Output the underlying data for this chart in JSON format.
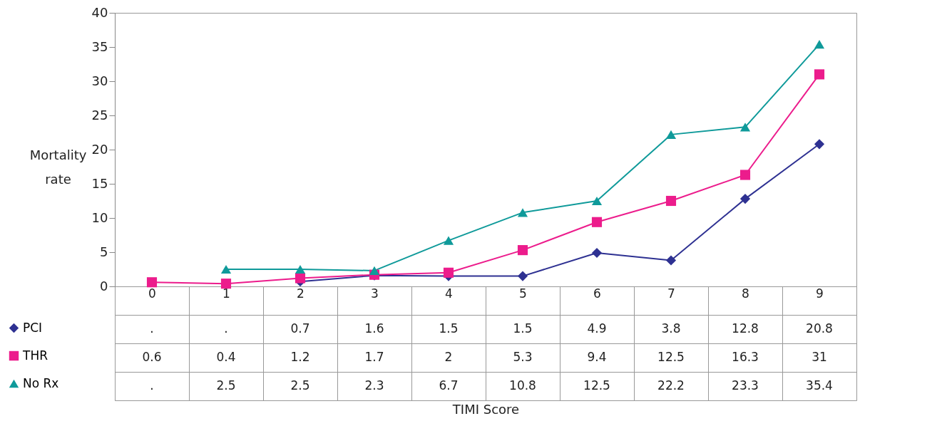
{
  "chart_data": {
    "type": "line",
    "annotations": [
      "TIMI Score"
    ],
    "ylabel": "Mortality rate",
    "categories": [
      "0",
      "1",
      "2",
      "3",
      "4",
      "5",
      "6",
      "7",
      "8",
      "9"
    ],
    "series": [
      {
        "name": "PCI",
        "color": "#2e3192",
        "marker": "diamond",
        "values": [
          null,
          null,
          0.7,
          1.6,
          1.5,
          1.5,
          4.9,
          3.8,
          12.8,
          20.8
        ],
        "value_labels": [
          ".",
          ".",
          "0.7",
          "1.6",
          "1.5",
          "1.5",
          "4.9",
          "3.8",
          "12.8",
          "20.8"
        ]
      },
      {
        "name": "THR",
        "color": "#ec1c8c",
        "marker": "square",
        "values": [
          0.6,
          0.4,
          1.2,
          1.7,
          2,
          5.3,
          9.4,
          12.5,
          16.3,
          31
        ],
        "value_labels": [
          "0.6",
          "0.4",
          "1.2",
          "1.7",
          "2",
          "5.3",
          "9.4",
          "12.5",
          "16.3",
          "31"
        ]
      },
      {
        "name": "No Rx",
        "color": "#0f9a9a",
        "marker": "triangle",
        "values": [
          null,
          2.5,
          2.5,
          2.3,
          6.7,
          10.8,
          12.5,
          22.2,
          23.3,
          35.4
        ],
        "value_labels": [
          ".",
          "2.5",
          "2.5",
          "2.3",
          "6.7",
          "10.8",
          "12.5",
          "22.2",
          "23.3",
          "35.4"
        ]
      }
    ],
    "ylim": [
      0,
      40
    ],
    "yticks": [
      0,
      5,
      10,
      15,
      20,
      25,
      30,
      35,
      40
    ],
    "grid": false,
    "legend": "bottom left",
    "line_style": "solid"
  }
}
